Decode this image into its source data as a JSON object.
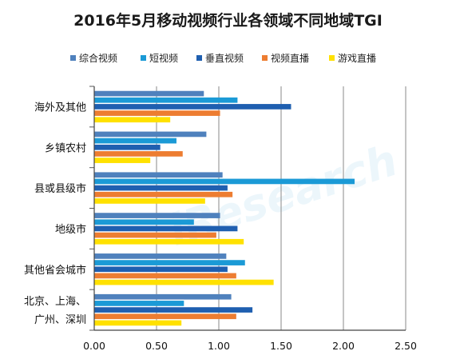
{
  "chart_data": {
    "type": "bar",
    "orientation": "horizontal",
    "title": "2016年5月移动视频行业各领域不同地域TGI",
    "categories": [
      "海外及其他",
      "乡镇农村",
      "县或县级市",
      "地级市",
      "其他省会城市",
      "北京、上海、广州、深圳"
    ],
    "category_lines": [
      [
        "海外及其他"
      ],
      [
        "乡镇农村"
      ],
      [
        "县或县级市"
      ],
      [
        "地级市"
      ],
      [
        "其他省会城市"
      ],
      [
        "北京、上海、",
        "广州、深圳"
      ]
    ],
    "series": [
      {
        "name": "综合视频",
        "color": "#4f81bd",
        "values": [
          0.88,
          0.9,
          1.03,
          1.01,
          1.06,
          1.1
        ]
      },
      {
        "name": "短视频",
        "color": "#1b9ad6",
        "values": [
          1.15,
          0.66,
          2.09,
          0.8,
          1.21,
          0.72
        ]
      },
      {
        "name": "垂直视频",
        "color": "#1f5fb0",
        "values": [
          1.58,
          0.53,
          1.07,
          1.15,
          1.07,
          1.27
        ]
      },
      {
        "name": "视频直播",
        "color": "#ed7d31",
        "values": [
          1.01,
          0.71,
          1.11,
          0.98,
          1.14,
          1.14
        ]
      },
      {
        "name": "游戏直播",
        "color": "#ffe100",
        "values": [
          0.61,
          0.45,
          0.89,
          1.2,
          1.44,
          0.7
        ]
      }
    ],
    "xlim": [
      0,
      2.5
    ],
    "xticks": [
      "0.00",
      "0.50",
      "1.00",
      "1.50",
      "2.00",
      "2.50"
    ],
    "xgrid": true,
    "legend_position": "top",
    "watermark": "iResearch"
  }
}
